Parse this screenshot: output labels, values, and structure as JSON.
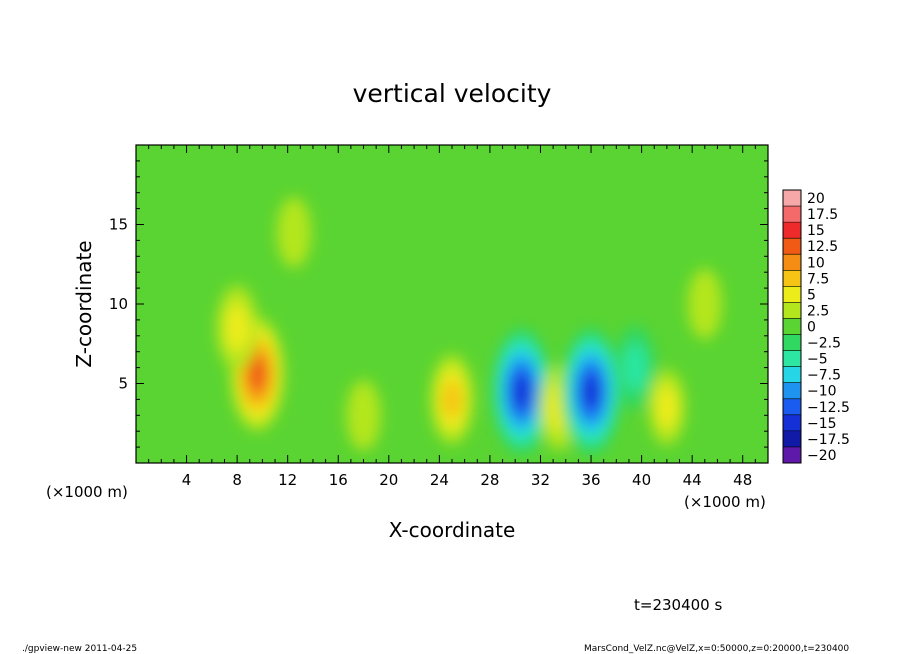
{
  "chart_data": {
    "type": "heatmap",
    "title": "vertical velocity",
    "xlabel": "X-coordinate",
    "ylabel": "Z-coordinate",
    "x_unit_left": "(×1000 m)",
    "x_unit_right": "(×1000 m)",
    "xlim": [
      0,
      50
    ],
    "ylim": [
      0,
      20
    ],
    "x_ticks": [
      4,
      8,
      12,
      16,
      20,
      24,
      28,
      32,
      36,
      40,
      44,
      48
    ],
    "y_ticks": [
      5,
      10,
      15
    ],
    "colorbar": {
      "labels": [
        "20",
        "17.5",
        "15",
        "12.5",
        "10",
        "7.5",
        "5",
        "2.5",
        "0",
        "−2.5",
        "−5",
        "−7.5",
        "−10",
        "−12.5",
        "−15",
        "−17.5",
        "−20"
      ],
      "colors": [
        "#f6a8a8",
        "#f46a6a",
        "#ee2a2a",
        "#f05a14",
        "#f58c14",
        "#f6c414",
        "#ecec1a",
        "#b4e61e",
        "#5ad432",
        "#30d760",
        "#2ce6a2",
        "#26d6e6",
        "#1e94f0",
        "#1a5cf0",
        "#1430d6",
        "#101aa6",
        "#5e18aa"
      ]
    },
    "background_value": 0.5,
    "features": [
      {
        "x": 9.6,
        "z": 5.6,
        "value": 12
      },
      {
        "x": 8.0,
        "z": 8.5,
        "value": 6
      },
      {
        "x": 12.5,
        "z": 14.5,
        "value": 3
      },
      {
        "x": 25.0,
        "z": 4.0,
        "value": 7
      },
      {
        "x": 30.5,
        "z": 4.5,
        "value": -15
      },
      {
        "x": 33.5,
        "z": 3.5,
        "value": 6
      },
      {
        "x": 36.0,
        "z": 4.5,
        "value": -15
      },
      {
        "x": 45.0,
        "z": 10.0,
        "value": 3
      },
      {
        "x": 39.5,
        "z": 6.0,
        "value": -6
      },
      {
        "x": 18.0,
        "z": 3.0,
        "value": 3
      },
      {
        "x": 42.0,
        "z": 3.5,
        "value": 4
      }
    ]
  },
  "annotations": {
    "time": "t=230400 s",
    "footer_left": "./gpview-new   2011-04-25",
    "footer_right": "MarsCond_VelZ.nc@VelZ,x=0:50000,z=0:20000,t=230400"
  }
}
